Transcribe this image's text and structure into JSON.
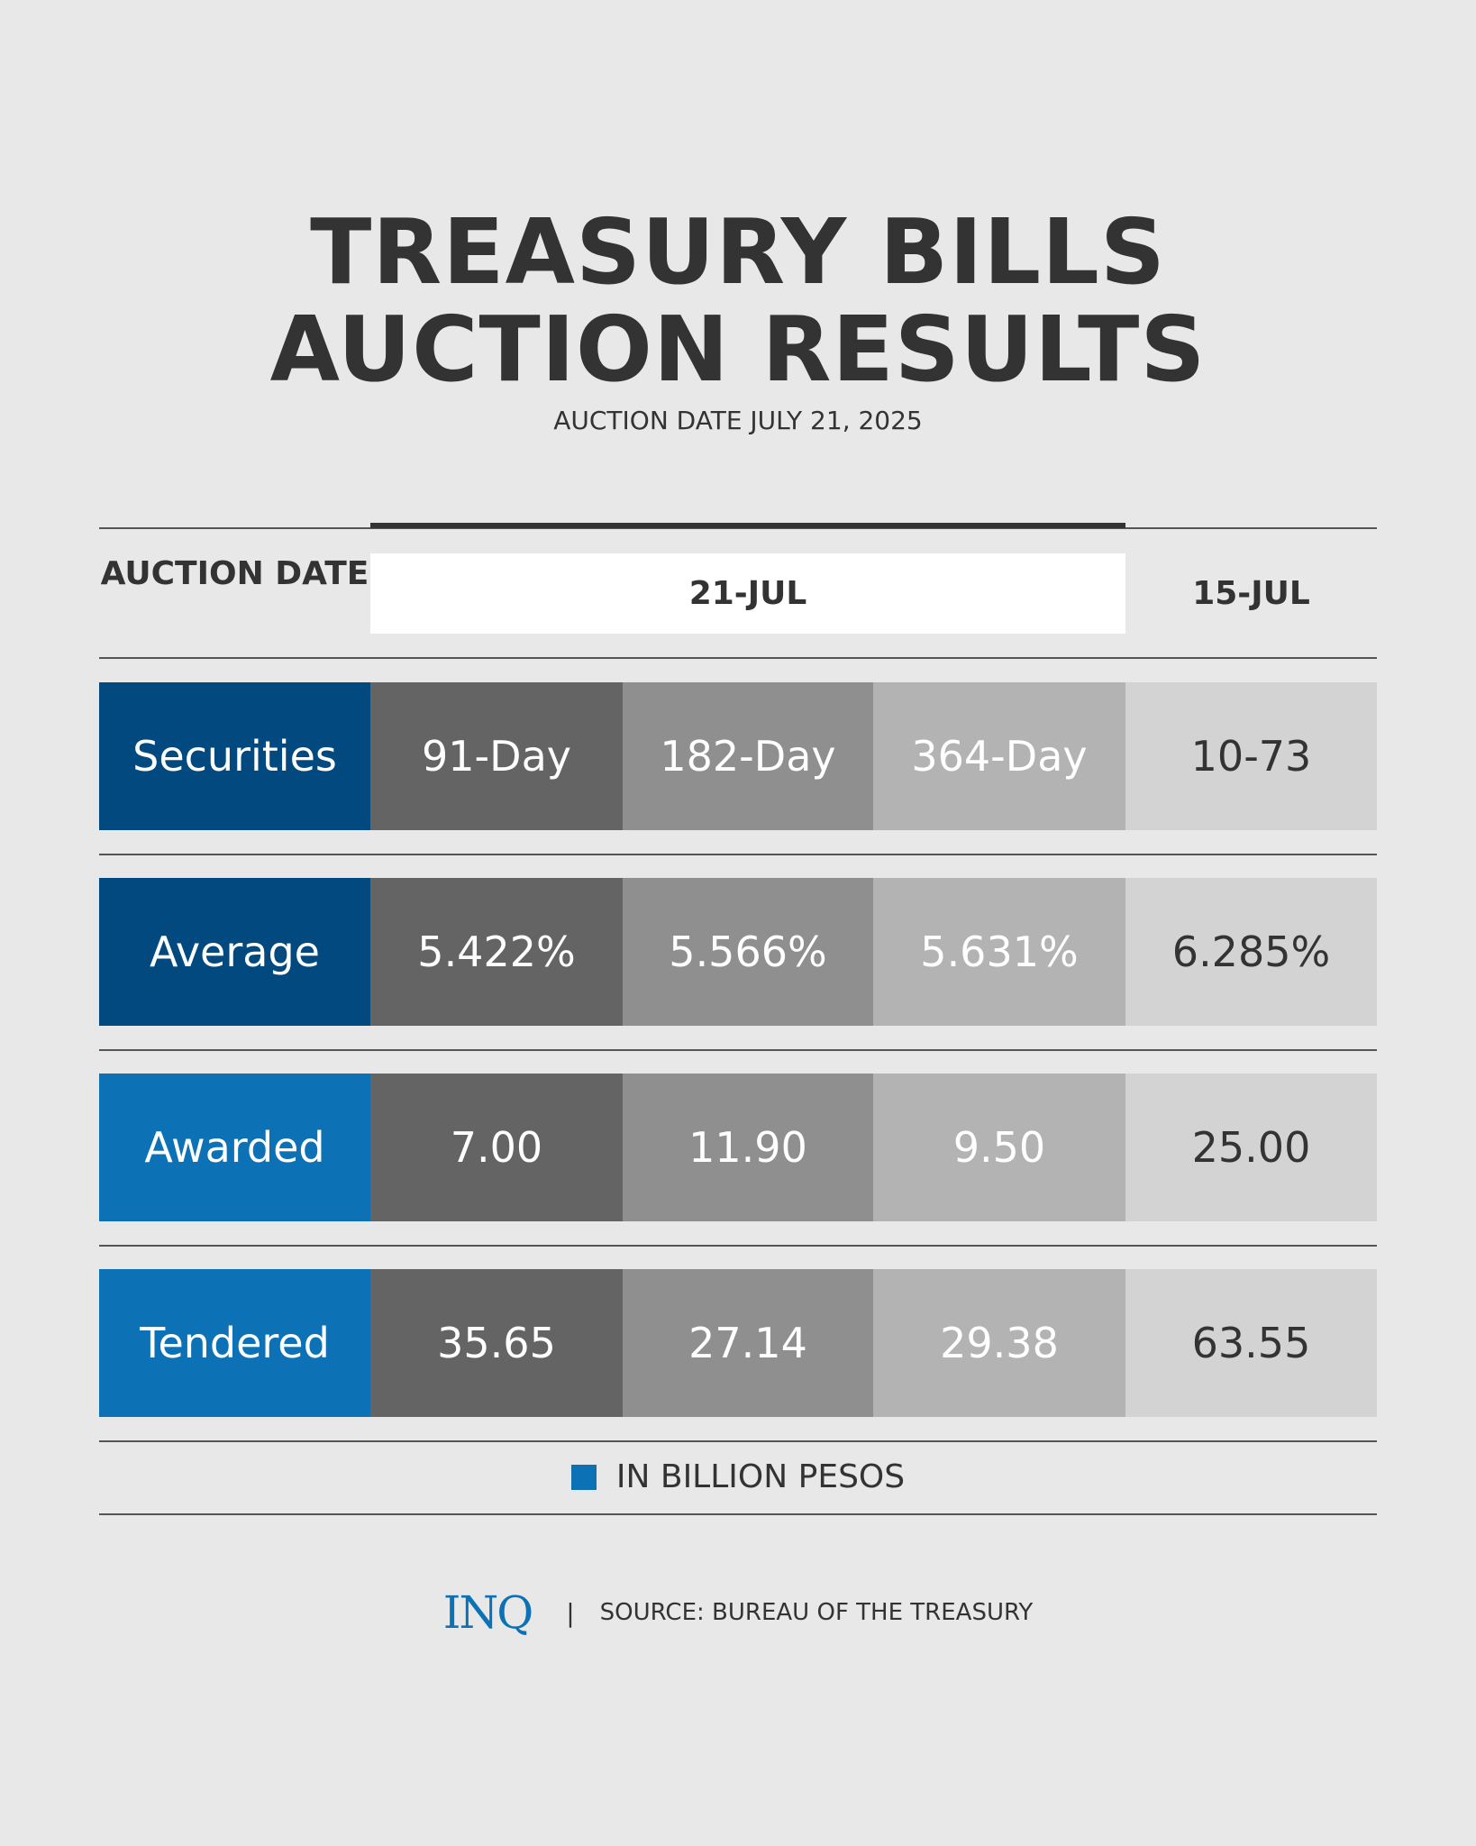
{
  "title": {
    "line1": "TREASURY BILLS",
    "line2": "AUCTION RESULTS"
  },
  "subtitle": "AUCTION DATE JULY 21, 2025",
  "header": {
    "label": "AUCTION DATE",
    "current": "21-JUL",
    "previous": "15-JUL"
  },
  "colors": {
    "navy": "#02497f",
    "blue": "#0c72b5",
    "col1": "#646464",
    "col2": "#8f8f8f",
    "col3": "#b3b3b3",
    "col4": "#d3d3d3",
    "background": "#e8e8e8"
  },
  "rows": [
    {
      "label": "Securities",
      "color": "#02497f",
      "values": [
        "91-Day",
        "182-Day",
        "364-Day",
        "10-73"
      ]
    },
    {
      "label": "Average",
      "color": "#02497f",
      "values": [
        "5.422%",
        "5.566%",
        "5.631%",
        "6.285%"
      ]
    },
    {
      "label": "Awarded",
      "color": "#0c72b5",
      "values": [
        "7.00",
        "11.90",
        "9.50",
        "25.00"
      ]
    },
    {
      "label": "Tendered",
      "color": "#0c72b5",
      "values": [
        "35.65",
        "27.14",
        "29.38",
        "63.55"
      ]
    }
  ],
  "legend": {
    "label": "IN BILLION PESOS",
    "color": "#0c72b5"
  },
  "footer": {
    "logo": "INQ",
    "separator": "|",
    "source": "SOURCE: BUREAU OF THE TREASURY"
  }
}
